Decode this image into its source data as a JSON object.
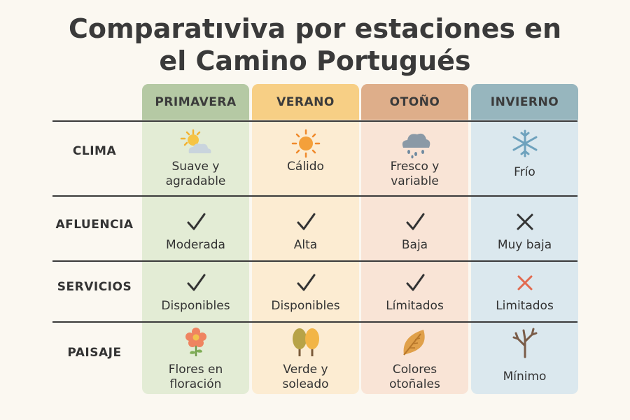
{
  "title": {
    "line1": "Comparatıviva por estaciones en",
    "line2": "el Camino Portugués"
  },
  "colors": {
    "primavera_head": "#b5c9a4",
    "primavera_body": "#e3ecd5",
    "verano_head": "#f7cf85",
    "verano_body": "#fcecd2",
    "otono_head": "#deae8a",
    "otono_body": "#f9e4d6",
    "invierno_head": "#97b6be",
    "invierno_body": "#dbe8ee"
  },
  "columns": [
    "PRIMAVERA",
    "VERANO",
    "OTOÑO",
    "INVIERNO"
  ],
  "rows": [
    {
      "label": "CLIMA",
      "cells": [
        {
          "icon": "sun-cloud-icon",
          "text": "Suave y\nagradable"
        },
        {
          "icon": "sun-icon",
          "text": "Cálido"
        },
        {
          "icon": "rain-cloud-icon",
          "text": "Fresco y\nvariable"
        },
        {
          "icon": "snowflake-icon",
          "text": "Frío"
        }
      ]
    },
    {
      "label": "AFLUENCIA",
      "cells": [
        {
          "icon": "check-icon",
          "text": "Moderada"
        },
        {
          "icon": "check-icon",
          "text": "Alta"
        },
        {
          "icon": "check-icon",
          "text": "Baja"
        },
        {
          "icon": "cross-icon",
          "text": "Muy baja"
        }
      ]
    },
    {
      "label": "SERVICIOS",
      "cells": [
        {
          "icon": "check-icon",
          "text": "Disponibles"
        },
        {
          "icon": "check-icon",
          "text": "Disponibles"
        },
        {
          "icon": "check-icon",
          "text": "Límitados"
        },
        {
          "icon": "cross-red-icon",
          "text": "Limitados"
        }
      ]
    },
    {
      "label": "PAISAJE",
      "cells": [
        {
          "icon": "flower-icon",
          "text": "Flores en\nfloración"
        },
        {
          "icon": "trees-icon",
          "text": "Verde y\nsoleado"
        },
        {
          "icon": "leaf-icon",
          "text": "Colores\notoñales"
        },
        {
          "icon": "bare-tree-icon",
          "text": "Mínimo"
        }
      ]
    }
  ]
}
